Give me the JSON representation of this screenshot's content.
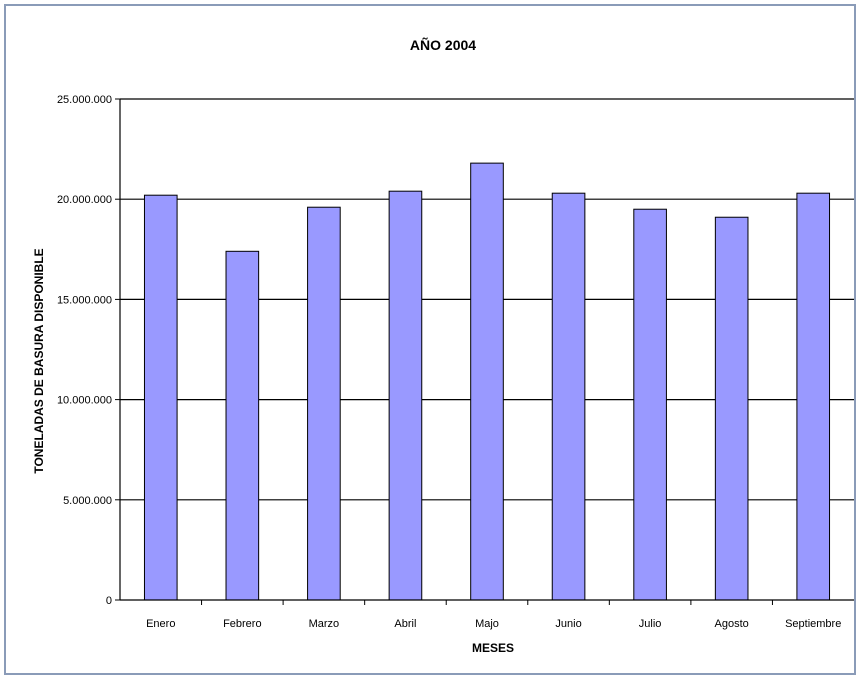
{
  "chart_data": {
    "type": "bar",
    "title": "AÑO 2004",
    "xlabel": "MESES",
    "ylabel": "TONELADAS DE BASURA DISPONIBLE",
    "categories": [
      "Enero",
      "Febrero",
      "Marzo",
      "Abril",
      "Majo",
      "Junio",
      "Julio",
      "Agosto",
      "Septiembre"
    ],
    "values": [
      20200000,
      17400000,
      19600000,
      20400000,
      21800000,
      20300000,
      19500000,
      19100000,
      20300000
    ],
    "ylim": [
      0,
      25000000
    ],
    "yticks": [
      {
        "value": 0,
        "label": "0"
      },
      {
        "value": 5000000,
        "label": "5.000.000"
      },
      {
        "value": 10000000,
        "label": "10.000.000"
      },
      {
        "value": 15000000,
        "label": "15.000.000"
      },
      {
        "value": 20000000,
        "label": "20.000.000"
      },
      {
        "value": 25000000,
        "label": "25.000.000"
      }
    ],
    "grid": true,
    "bar_color": "#9999ff",
    "bar_edge_color": "#000000",
    "legend": "none"
  }
}
